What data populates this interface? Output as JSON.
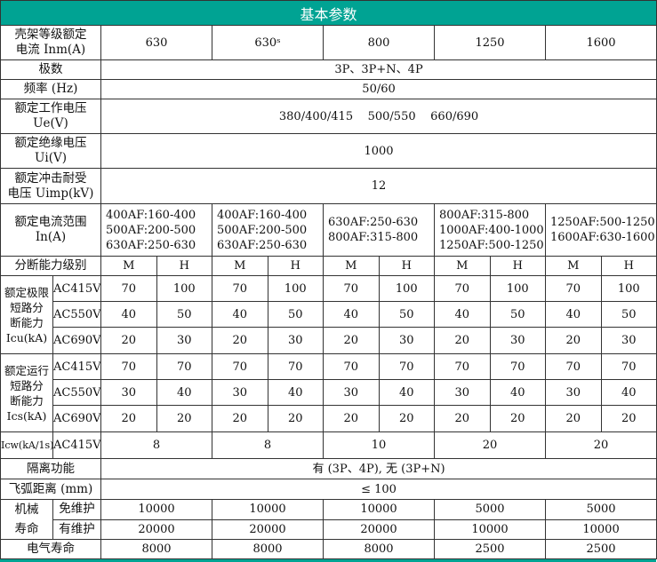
{
  "title": "基本参数",
  "frame_current": {
    "label": "壳架等级额定\n电流 Inm(A)",
    "values": [
      "630",
      "630ˢ",
      "800",
      "1250",
      "1600"
    ]
  },
  "poles": {
    "label": "极数",
    "value": "3P、3P+N、4P"
  },
  "frequency": {
    "label": "频率 (Hz)",
    "value": "50/60"
  },
  "ue": {
    "label": "额定工作电压\nUe(V)",
    "value": "380/400/415    500/550    660/690"
  },
  "ui": {
    "label": "额定绝缘电压\nUi(V)",
    "value": "1000"
  },
  "uimp": {
    "label": "额定冲击耐受\n电压 Uimp(kV)",
    "value": "12"
  },
  "in_range": {
    "label": "额定电流范围\nIn(A)",
    "values": [
      "400AF:160-400\n500AF:200-500\n630AF:250-630",
      "400AF:160-400\n500AF:200-500\n630AF:250-630",
      "630AF:250-630\n800AF:315-800",
      "800AF:315-800\n1000AF:400-1000\n1250AF:500-1250",
      "1250AF:500-1250\n1600AF:630-1600"
    ]
  },
  "breaking_level": {
    "label": "分断能力级别",
    "values": [
      "M",
      "H",
      "M",
      "H",
      "M",
      "H",
      "M",
      "H",
      "M",
      "H"
    ]
  },
  "icu": {
    "label": "额定极限\n短路分\n断能力\nIcu(kA)",
    "rows": [
      {
        "voltage": "AC415V",
        "values": [
          "70",
          "100",
          "70",
          "100",
          "70",
          "100",
          "70",
          "100",
          "70",
          "100"
        ]
      },
      {
        "voltage": "AC550V",
        "values": [
          "40",
          "50",
          "40",
          "50",
          "40",
          "50",
          "40",
          "50",
          "40",
          "50"
        ]
      },
      {
        "voltage": "AC690V",
        "values": [
          "20",
          "30",
          "20",
          "30",
          "20",
          "30",
          "20",
          "30",
          "20",
          "30"
        ]
      }
    ]
  },
  "ics": {
    "label": "额定运行\n短路分\n断能力\nIcs(kA)",
    "rows": [
      {
        "voltage": "AC415V",
        "values": [
          "70",
          "70",
          "70",
          "70",
          "70",
          "70",
          "70",
          "70",
          "70",
          "70"
        ]
      },
      {
        "voltage": "AC550V",
        "values": [
          "30",
          "40",
          "30",
          "40",
          "30",
          "40",
          "30",
          "40",
          "30",
          "40"
        ]
      },
      {
        "voltage": "AC690V",
        "values": [
          "20",
          "20",
          "20",
          "20",
          "20",
          "20",
          "20",
          "20",
          "20",
          "20"
        ]
      }
    ]
  },
  "icw": {
    "label": "Icw(kA/1s)",
    "voltage": "AC415V",
    "values": [
      "8",
      "8",
      "10",
      "20",
      "20"
    ]
  },
  "isolation": {
    "label": "隔离功能",
    "value": "有 (3P、4P), 无 (3P+N)"
  },
  "arc_distance": {
    "label": "飞弧距离 (mm)",
    "value": "≤ 100"
  },
  "mech_life": {
    "label": "机械\n寿命",
    "rows": [
      {
        "label": "免维护",
        "values": [
          "10000",
          "10000",
          "10000",
          "5000",
          "5000"
        ]
      },
      {
        "label": "有维护",
        "values": [
          "20000",
          "20000",
          "20000",
          "10000",
          "10000"
        ]
      }
    ]
  },
  "elec_life": {
    "label": "电气寿命",
    "values": [
      "8000",
      "8000",
      "8000",
      "2500",
      "2500"
    ]
  }
}
